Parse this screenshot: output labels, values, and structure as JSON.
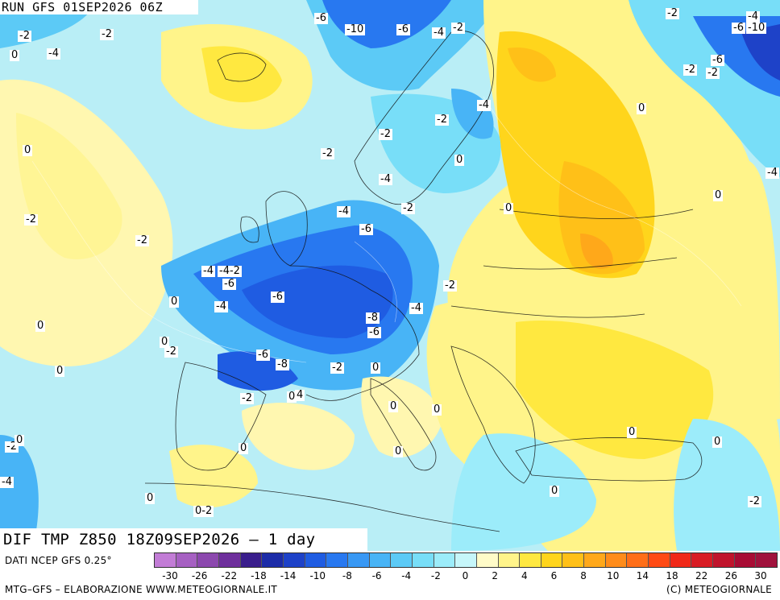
{
  "run_title": "RUN GFS 01SEP2026 06Z",
  "panel_title": "DIF TMP Z850 18Z09SEP2026 – 1 day",
  "source_note": "DATI NCEP GFS 0.25°",
  "credit_left": "MTG–GFS – ELABORAZIONE WWW.METEOGIORNALE.IT",
  "credit_right": "(C) METEOGIORNALE",
  "legend": {
    "colors": [
      "#c27cd6",
      "#a660c2",
      "#8c48ae",
      "#6e2f9c",
      "#3a1e8c",
      "#1c2ca8",
      "#1e42c8",
      "#1f5ce2",
      "#2878f0",
      "#3898f4",
      "#48b4f6",
      "#5ccaf6",
      "#78def8",
      "#9cecfa",
      "#c6f6fa",
      "#fffbc8",
      "#fff48a",
      "#ffe840",
      "#ffd51c",
      "#ffc018",
      "#ffa81a",
      "#ff8c1a",
      "#ff6e18",
      "#ff4a14",
      "#f02818",
      "#d81c24",
      "#c0142c",
      "#a80c34",
      "#a0123c"
    ],
    "tick_labels": [
      "-30",
      "-26",
      "-22",
      "-18",
      "-14",
      "-10",
      "-8",
      "-6",
      "-4",
      "-2",
      "0",
      "2",
      "4",
      "6",
      "8",
      "10",
      "14",
      "18",
      "22",
      "26",
      "30"
    ]
  },
  "map_labels": [
    {
      "t": "-6"
    },
    {
      "t": "-10"
    },
    {
      "t": "-6"
    },
    {
      "t": "-4"
    },
    {
      "t": "-2"
    },
    {
      "t": "-2"
    },
    {
      "t": "-2"
    },
    {
      "t": "-4"
    },
    {
      "t": "0"
    },
    {
      "t": "-2"
    },
    {
      "t": "-6"
    },
    {
      "t": "-10"
    },
    {
      "t": "-6"
    },
    {
      "t": "-4"
    },
    {
      "t": "-2"
    },
    {
      "t": "-4"
    },
    {
      "t": "0"
    },
    {
      "t": "-2"
    },
    {
      "t": "-2"
    },
    {
      "t": "-2"
    },
    {
      "t": "0"
    },
    {
      "t": "-4"
    },
    {
      "t": "-2"
    },
    {
      "t": "0"
    },
    {
      "t": "0"
    },
    {
      "t": "-2"
    },
    {
      "t": "-2"
    },
    {
      "t": "-4"
    },
    {
      "t": "-6"
    },
    {
      "t": "-2"
    },
    {
      "t": "-4"
    },
    {
      "t": "-4-2"
    },
    {
      "t": "-6"
    },
    {
      "t": "-2"
    },
    {
      "t": "0"
    },
    {
      "t": "-6"
    },
    {
      "t": "-4"
    },
    {
      "t": "0"
    },
    {
      "t": "-8"
    },
    {
      "t": "-4"
    },
    {
      "t": "-6"
    },
    {
      "t": "-2"
    },
    {
      "t": "0"
    },
    {
      "t": "-6"
    },
    {
      "t": "-8"
    },
    {
      "t": "-2"
    },
    {
      "t": "0"
    },
    {
      "t": "0"
    },
    {
      "t": "-2"
    },
    {
      "t": "0"
    },
    {
      "t": "4"
    },
    {
      "t": "0"
    },
    {
      "t": "0"
    },
    {
      "t": "-2"
    },
    {
      "t": "0"
    },
    {
      "t": "0"
    },
    {
      "t": "0"
    },
    {
      "t": "0"
    },
    {
      "t": "0-2"
    },
    {
      "t": "0"
    },
    {
      "t": "0"
    },
    {
      "t": "-2"
    },
    {
      "t": "0"
    },
    {
      "t": "-4"
    },
    {
      "t": "0"
    },
    {
      "t": "-4"
    }
  ]
}
